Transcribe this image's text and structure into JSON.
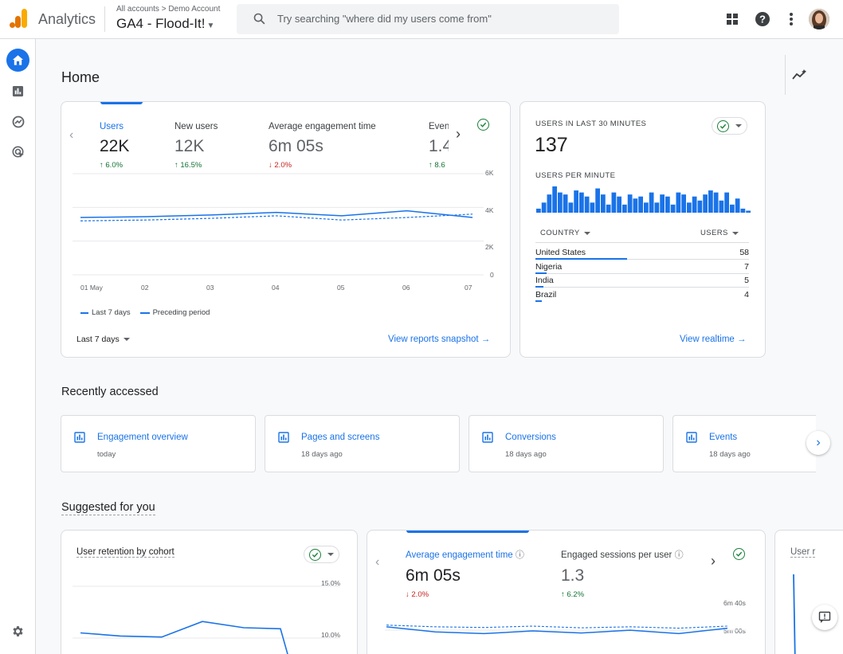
{
  "header": {
    "app_name": "Analytics",
    "breadcrumb": "All accounts > Demo Account",
    "property": "GA4 - Flood-It!",
    "search_placeholder": "Try searching \"where did my users come from\""
  },
  "page": {
    "title": "Home"
  },
  "overview": {
    "metrics": [
      {
        "label": "Users",
        "value": "22K",
        "change": "6.0%",
        "direction": "up"
      },
      {
        "label": "New users",
        "value": "12K",
        "change": "16.5%",
        "direction": "up"
      },
      {
        "label": "Average engagement time",
        "value": "6m 05s",
        "change": "2.0%",
        "direction": "down"
      },
      {
        "label": "Even",
        "value": "1.4",
        "change": "8.6",
        "direction": "up"
      }
    ],
    "legend": {
      "current": "Last 7 days",
      "previous": "Preceding period"
    },
    "date_range": "Last 7 days",
    "link": "View reports snapshot"
  },
  "chart_data": [
    {
      "type": "line",
      "x": [
        "01 May",
        "02",
        "03",
        "04",
        "05",
        "06",
        "07"
      ],
      "ytick_labels": [
        "6K",
        "4K",
        "2K",
        "0"
      ],
      "ylim": [
        0,
        6000
      ],
      "series": [
        {
          "name": "Last 7 days",
          "values": [
            3400,
            3450,
            3550,
            3700,
            3500,
            3800,
            3400
          ]
        },
        {
          "name": "Preceding period",
          "values": [
            3200,
            3250,
            3350,
            3500,
            3250,
            3400,
            3600
          ]
        }
      ]
    },
    {
      "type": "bar",
      "title": "USERS PER MINUTE",
      "values": [
        2,
        5,
        9,
        13,
        10,
        9,
        5,
        11,
        10,
        8,
        5,
        12,
        9,
        4,
        10,
        8,
        4,
        9,
        7,
        8,
        5,
        10,
        5,
        9,
        8,
        4,
        10,
        9,
        5,
        8,
        6,
        9,
        11,
        10,
        6,
        10,
        4,
        7,
        2,
        1
      ]
    },
    {
      "type": "line",
      "title": "User retention by cohort",
      "ytick_labels": [
        "15.0%",
        "10.0%"
      ],
      "series": [
        {
          "values": [
            10.5,
            10.2,
            10.1,
            11.6,
            11.0,
            10.9,
            6.0
          ]
        }
      ]
    },
    {
      "type": "line",
      "ytick_labels": [
        "6m 40s",
        "5m 00s"
      ],
      "series": [
        {
          "values": [
            300,
            285,
            280,
            288,
            282,
            290,
            280,
            296
          ]
        },
        {
          "values": [
            305,
            300,
            298,
            302,
            297,
            300,
            296,
            302
          ]
        }
      ]
    }
  ],
  "realtime": {
    "title": "USERS IN LAST 30 MINUTES",
    "value": "137",
    "per_minute_label": "USERS PER MINUTE",
    "col_country": "COUNTRY",
    "col_users": "USERS",
    "countries": [
      {
        "name": "United States",
        "users": "58",
        "share": 1.0
      },
      {
        "name": "Nigeria",
        "users": "7",
        "share": 0.12
      },
      {
        "name": "India",
        "users": "5",
        "share": 0.09
      },
      {
        "name": "Brazil",
        "users": "4",
        "share": 0.07
      }
    ],
    "link": "View realtime"
  },
  "recent": {
    "title": "Recently accessed",
    "items": [
      {
        "title": "Engagement overview",
        "sub": "today"
      },
      {
        "title": "Pages and screens",
        "sub": "18 days ago"
      },
      {
        "title": "Conversions",
        "sub": "18 days ago"
      },
      {
        "title": "Events",
        "sub": "18 days ago"
      }
    ]
  },
  "suggested": {
    "title": "Suggested for you",
    "retention_title": "User retention by cohort",
    "engagement": [
      {
        "label": "Average engagement time",
        "value": "6m 05s",
        "change": "2.0%",
        "direction": "down"
      },
      {
        "label": "Engaged sessions per user",
        "value": "1.3",
        "change": "6.2%",
        "direction": "up"
      }
    ],
    "third_title": "User r"
  },
  "colors": {
    "accent": "#1a73e8",
    "up": "#137333",
    "down": "#c5221f"
  }
}
